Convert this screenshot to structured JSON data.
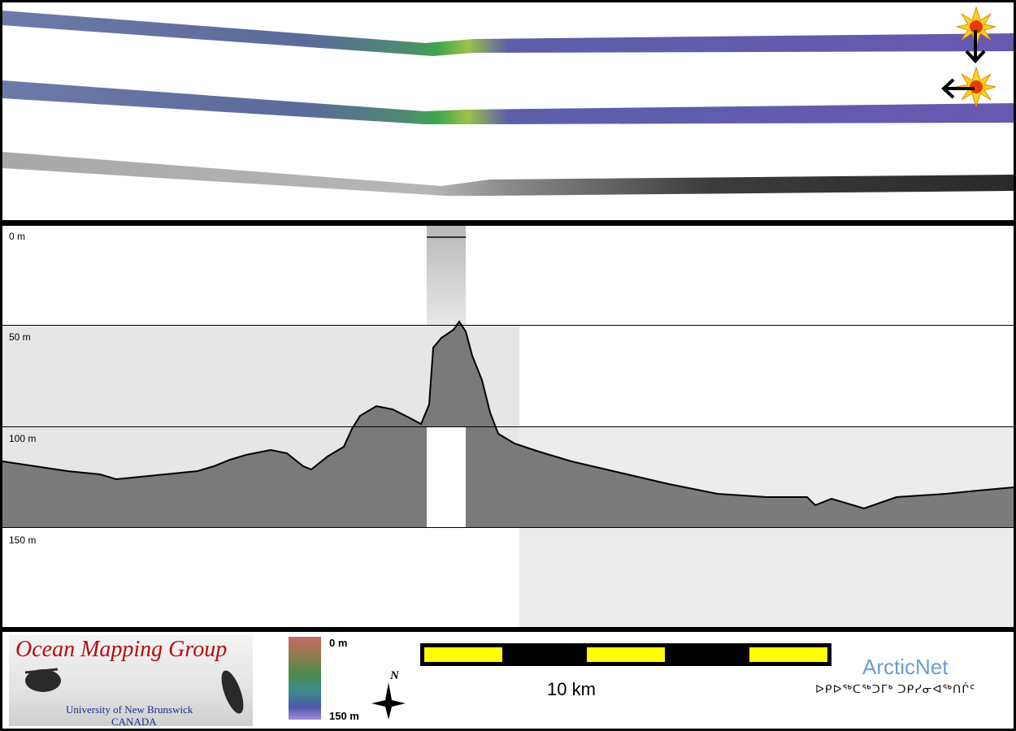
{
  "swath_panel": {
    "tracks": [
      {
        "name": "bathymetry-shaded-upper",
        "style": "color-shaded"
      },
      {
        "name": "bathymetry-shaded-lower",
        "style": "color-shaded"
      },
      {
        "name": "backscatter-grey",
        "style": "greyscale"
      }
    ],
    "markers": [
      {
        "icon": "sun-icon",
        "arrow": "arrow-down"
      },
      {
        "icon": "sun-icon",
        "arrow": "arrow-left"
      }
    ]
  },
  "profile_panel": {
    "depth_labels": [
      "0 m",
      "50 m",
      "100 m",
      "150 m"
    ]
  },
  "footer": {
    "logo": {
      "title": "Ocean Mapping Group",
      "university": "University of New Brunswick",
      "country": "CANADA"
    },
    "colorbar": {
      "top_label": "0 m",
      "bottom_label": "150 m"
    },
    "north_label": "N",
    "scale_label": "10 km",
    "arcticnet": "ArcticNet",
    "inuktitut": "ᐅᑭᐅᖅᑕᖅᑐᒥᒃ ᑐᑭᓯᓂᐊᖅᑎᒌᑦ"
  },
  "colors": {
    "background": "#000000",
    "logo_red": "#b80c10",
    "logo_blue": "#1a2a8a",
    "scale_yellow": "#ffff00",
    "arcticnet_blue": "#6a9ed1"
  }
}
